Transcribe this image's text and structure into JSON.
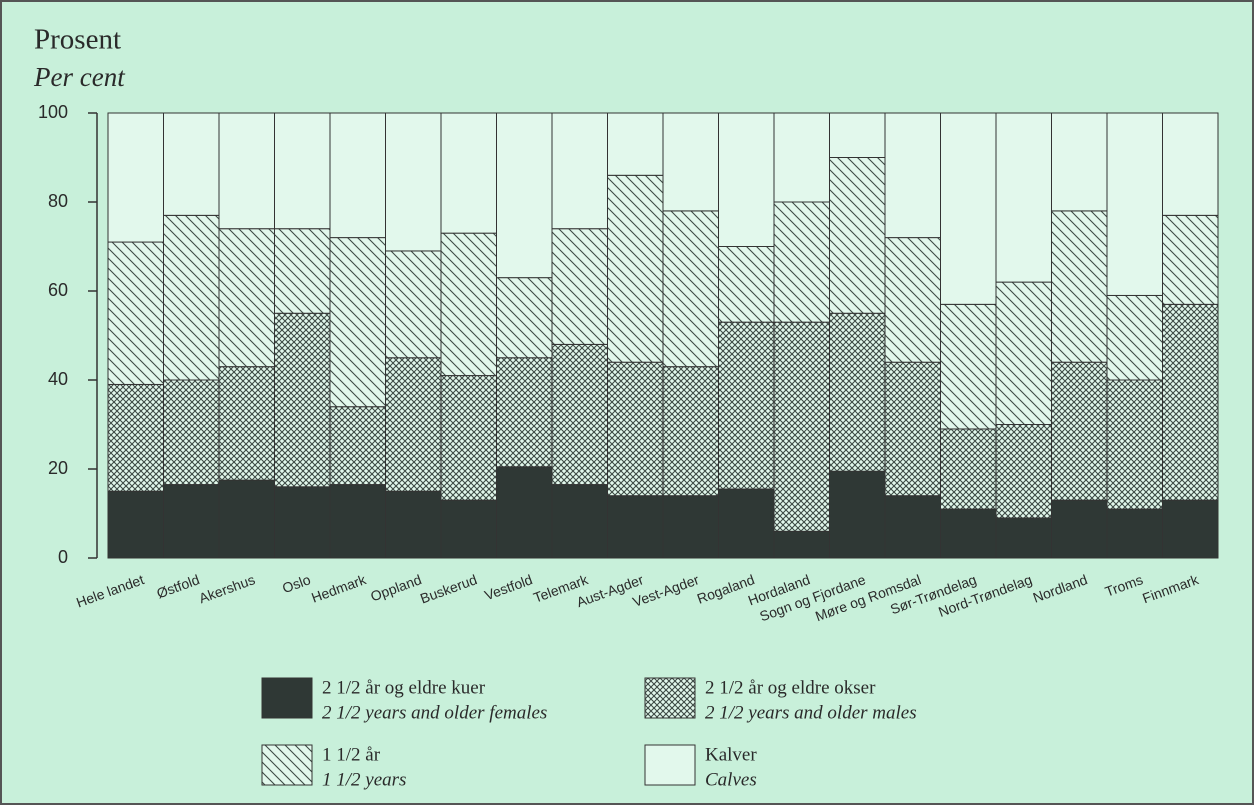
{
  "chart_data": {
    "type": "stacked_bar",
    "title": "Prosent",
    "subtitle": "Per cent",
    "categories": [
      "Hele landet",
      "Østfold",
      "Akershus",
      "Oslo",
      "Hedmark",
      "Oppland",
      "Buskerud",
      "Vestfold",
      "Telemark",
      "Aust-Agder",
      "Vest-Agder",
      "Rogaland",
      "Hordaland",
      "Sogn og Fjordane",
      "Møre og Romsdal",
      "Sør-Trøndelag",
      "Nord-Trøndelag",
      "Nordland",
      "Troms",
      "Finnmark"
    ],
    "series": [
      {
        "name": "2 1/2 år og eldre kuer",
        "name_en": "2 1/2 years and older females",
        "color": "#2f3835",
        "pattern": "solid",
        "values": [
          15,
          16.5,
          17.5,
          16,
          16.5,
          15,
          13,
          20.5,
          16.5,
          14,
          14,
          15.5,
          6,
          19.5,
          14,
          11,
          9,
          13,
          11,
          13
        ]
      },
      {
        "name": "2 1/2 år og eldre okser",
        "name_en": "2 1/2 years and older males",
        "color": "#3d4a45",
        "pattern": "crosshatch",
        "values": [
          24,
          23.5,
          25.5,
          39,
          17.5,
          30,
          28,
          24.5,
          31.5,
          30,
          29,
          37.5,
          47,
          35.5,
          30,
          18,
          21,
          31,
          29,
          44
        ]
      },
      {
        "name": "1 1/2 år",
        "name_en": "1 1/2 years",
        "color": "#3d4a45",
        "pattern": "diagonal",
        "values": [
          32,
          37,
          31,
          19,
          38,
          24,
          32,
          18,
          26,
          42,
          35,
          17,
          27,
          35,
          28,
          28,
          32,
          34,
          19,
          20
        ]
      },
      {
        "name": "Kalver",
        "name_en": "Calves",
        "color": "#e2f8ec",
        "pattern": "none",
        "values": [
          29,
          23,
          26,
          26,
          28,
          31,
          27,
          37,
          26,
          14,
          22,
          30,
          20,
          10,
          28,
          43,
          38,
          22,
          41,
          23
        ]
      }
    ],
    "ylim": [
      0,
      100
    ],
    "yticks": [
      0,
      20,
      40,
      60,
      80,
      100
    ]
  }
}
